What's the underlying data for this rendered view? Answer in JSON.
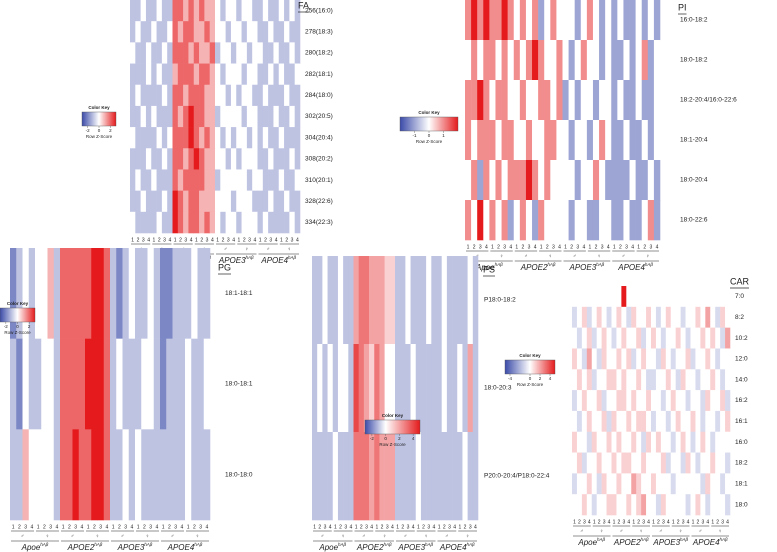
{
  "colors": [
    "#3b4ba8",
    "#ffffff",
    "#e41a1c"
  ],
  "groups": [
    {
      "name": "Apoe",
      "sup": "hAβ"
    },
    {
      "name": "APOE2",
      "sup": "hAβ"
    },
    {
      "name": "APOE3",
      "sup": "hAβ"
    },
    {
      "name": "APOE4",
      "sup": "hAβ"
    }
  ],
  "sexes": [
    "♂",
    "♀"
  ],
  "column_labels": [
    1,
    2,
    3,
    4
  ],
  "chart_data": [
    {
      "type": "heatmap",
      "title": "FA",
      "key_title": "Color Key",
      "key_label": "Row Z-Score",
      "zlim": [
        -3,
        3
      ],
      "zticks": [
        -2,
        0,
        2
      ],
      "rows": [
        "256(16:0)",
        "278(18:3)",
        "280(18:2)",
        "282(18:1)",
        "284(18:0)",
        "302(20:5)",
        "304(20:4)",
        "308(20:2)",
        "310(20:1)",
        "328(22:6)",
        "334(22:3)"
      ],
      "values": [
        [
          -1,
          -1,
          0,
          -1,
          -1,
          0,
          -1,
          -1,
          2,
          2,
          1,
          2,
          1,
          2,
          1,
          1,
          0,
          -1,
          0,
          0,
          -1,
          0,
          0,
          -1,
          -1,
          0,
          -1,
          -1,
          0,
          -1,
          0,
          -1
        ],
        [
          -1,
          0,
          -1,
          -1,
          0,
          -1,
          -1,
          0,
          2,
          1,
          2,
          2,
          1,
          1,
          2,
          1,
          0,
          0,
          -1,
          0,
          0,
          -1,
          0,
          0,
          -1,
          -1,
          0,
          -1,
          -1,
          0,
          -1,
          -1
        ],
        [
          0,
          -1,
          -1,
          0,
          -1,
          -1,
          0,
          -1,
          2,
          2,
          2,
          1,
          2,
          1,
          1,
          2,
          -1,
          0,
          0,
          -1,
          0,
          0,
          -1,
          0,
          0,
          -1,
          -1,
          0,
          -1,
          -1,
          0,
          -1
        ],
        [
          -1,
          -1,
          -1,
          0,
          -1,
          0,
          -1,
          -1,
          1,
          2,
          2,
          2,
          1,
          2,
          2,
          1,
          0,
          -1,
          0,
          0,
          0,
          -1,
          0,
          0,
          -1,
          -1,
          0,
          -1,
          0,
          -1,
          -1,
          0
        ],
        [
          -1,
          0,
          -1,
          -1,
          -1,
          -1,
          0,
          -1,
          2,
          2,
          1,
          2,
          2,
          2,
          1,
          1,
          0,
          0,
          -1,
          0,
          -1,
          0,
          0,
          -1,
          -1,
          0,
          -1,
          -1,
          -1,
          0,
          -1,
          -1
        ],
        [
          -1,
          -1,
          0,
          -1,
          0,
          -1,
          -1,
          -1,
          2,
          1,
          2,
          3,
          2,
          2,
          1,
          1,
          -1,
          0,
          0,
          0,
          0,
          -1,
          0,
          0,
          -1,
          -1,
          -1,
          0,
          -1,
          -1,
          0,
          -1
        ],
        [
          0,
          -1,
          -1,
          -1,
          -1,
          0,
          -1,
          0,
          2,
          2,
          2,
          3,
          2,
          1,
          2,
          1,
          0,
          -1,
          0,
          -1,
          0,
          0,
          -1,
          0,
          -1,
          0,
          -1,
          -1,
          0,
          -1,
          -1,
          -1
        ],
        [
          -1,
          -1,
          -1,
          0,
          -1,
          -1,
          0,
          -1,
          2,
          2,
          1,
          2,
          3,
          2,
          1,
          1,
          0,
          0,
          -1,
          0,
          -1,
          0,
          0,
          0,
          -1,
          -1,
          0,
          -1,
          -1,
          -1,
          0,
          -1
        ],
        [
          -1,
          0,
          -1,
          -1,
          0,
          -1,
          -1,
          -1,
          2,
          1,
          2,
          2,
          2,
          2,
          1,
          1,
          -1,
          0,
          0,
          0,
          0,
          0,
          -1,
          0,
          0,
          -1,
          -1,
          -1,
          0,
          -1,
          -1,
          0
        ],
        [
          -1,
          -1,
          0,
          -1,
          -1,
          -1,
          0,
          -1,
          3,
          2,
          1,
          2,
          2,
          1,
          1,
          1,
          0,
          0,
          0,
          -1,
          0,
          0,
          0,
          -1,
          -1,
          -1,
          0,
          -1,
          -1,
          0,
          -1,
          -1
        ],
        [
          0,
          -1,
          -1,
          -1,
          -1,
          0,
          -1,
          -1,
          3,
          2,
          1,
          2,
          2,
          1,
          2,
          1,
          0,
          -1,
          0,
          0,
          -1,
          0,
          0,
          0,
          -1,
          0,
          -1,
          -1,
          -1,
          -1,
          0,
          -1
        ]
      ]
    },
    {
      "type": "heatmap",
      "title": "PI",
      "key_title": "Color Key",
      "key_label": "Row Z-Score",
      "zlim": [
        -2,
        2
      ],
      "zticks": [
        -1,
        0,
        1
      ],
      "rows": [
        "16:0-18:2",
        "18:0-18:2",
        "18:2-20:4/16:0-22:6",
        "18:1-20:4",
        "18:0-20:4",
        "18:0-22:6"
      ],
      "values": [
        [
          1,
          2,
          1,
          2,
          1,
          1,
          2,
          1,
          0,
          1,
          0,
          1,
          -1,
          0,
          1,
          0,
          0,
          0,
          -1,
          0,
          1,
          0,
          -1,
          0,
          -1,
          0,
          -1,
          -1,
          0,
          -1,
          0,
          -1
        ],
        [
          0,
          1,
          0,
          1,
          1,
          0,
          1,
          0,
          1,
          0,
          1,
          2,
          1,
          0,
          0,
          1,
          0,
          -1,
          0,
          1,
          0,
          0,
          -1,
          0,
          -1,
          -1,
          0,
          -1,
          0,
          1,
          -1,
          0
        ],
        [
          1,
          1,
          2,
          1,
          0,
          1,
          1,
          0,
          0,
          1,
          0,
          0,
          1,
          1,
          0,
          1,
          -1,
          0,
          -1,
          0,
          0,
          -1,
          0,
          0,
          -1,
          0,
          -1,
          -1,
          0,
          -1,
          -1,
          0
        ],
        [
          1,
          0,
          1,
          1,
          1,
          0,
          1,
          1,
          0,
          0,
          1,
          0,
          0,
          1,
          1,
          0,
          0,
          -1,
          0,
          0,
          -1,
          0,
          1,
          0,
          -1,
          -1,
          0,
          -1,
          -1,
          0,
          -1,
          0
        ],
        [
          0,
          1,
          -1,
          1,
          0,
          1,
          0,
          1,
          1,
          1,
          2,
          1,
          0,
          1,
          0,
          0,
          0,
          0,
          -1,
          0,
          0,
          1,
          0,
          -1,
          -1,
          -1,
          -1,
          0,
          -1,
          -1,
          0,
          -1
        ],
        [
          1,
          0,
          2,
          0,
          1,
          0,
          1,
          -1,
          0,
          1,
          0,
          -1,
          1,
          0,
          0,
          0,
          0,
          -1,
          0,
          0,
          -1,
          -1,
          0,
          0,
          -1,
          -1,
          0,
          -1,
          -1,
          0,
          1,
          -1
        ]
      ]
    },
    {
      "type": "heatmap",
      "title": "PG",
      "key_title": "Color Key",
      "key_label": "Row Z-Score",
      "zlim": [
        -3,
        3
      ],
      "zticks": [
        -2,
        0,
        2
      ],
      "rows": [
        "18:1-18:1",
        "18:0-18:1",
        "18:0-18:0"
      ],
      "values": [
        [
          -2,
          -1,
          0,
          -1,
          0,
          0,
          1,
          -1,
          2,
          2,
          2,
          2,
          2,
          3,
          3,
          2,
          -1,
          -2,
          -1,
          0,
          -1,
          -1,
          0,
          -1,
          -2,
          -2,
          -1,
          -1,
          -1,
          0,
          -1,
          -1
        ],
        [
          -1,
          -2,
          0,
          -1,
          -1,
          0,
          0,
          -1,
          2,
          2,
          2,
          2,
          3,
          3,
          3,
          2,
          -1,
          0,
          -1,
          -1,
          -1,
          0,
          0,
          -1,
          -2,
          -1,
          -1,
          -1,
          0,
          -1,
          -1,
          0
        ],
        [
          -1,
          -1,
          1,
          0,
          0,
          0,
          0,
          -1,
          2,
          2,
          3,
          2,
          2,
          3,
          3,
          2,
          -1,
          -1,
          0,
          -1,
          0,
          -1,
          -1,
          -1,
          -1,
          -1,
          -1,
          -1,
          0,
          -1,
          -1,
          -1
        ]
      ]
    },
    {
      "type": "heatmap",
      "title": "PS",
      "key_title": "Color Key",
      "key_label": "Row Z-Score",
      "zlim": [
        -3,
        5
      ],
      "zticks": [
        -2,
        0,
        2,
        4
      ],
      "rows": [
        "P18:0-18:2",
        "18:0-20:3",
        "P20:0-20:4/P18:0-22:4"
      ],
      "values": [
        [
          -1,
          -1,
          0,
          -1,
          -1,
          0,
          -1,
          -1,
          2,
          3,
          3,
          2,
          2,
          2,
          1,
          1,
          -1,
          -1,
          0,
          -1,
          -1,
          -1,
          0,
          -1,
          -1,
          0,
          -1,
          -1,
          -1,
          -1,
          0,
          -1
        ],
        [
          -1,
          0,
          -1,
          0,
          -1,
          0,
          0,
          -1,
          4,
          3,
          2,
          1,
          3,
          2,
          0,
          0,
          -1,
          -1,
          -1,
          0,
          -1,
          -1,
          -1,
          -1,
          -1,
          0,
          -1,
          -1,
          0,
          -1,
          2,
          -1
        ],
        [
          -1,
          -1,
          -1,
          -1,
          0,
          -1,
          -1,
          -1,
          3,
          3,
          3,
          2,
          3,
          2,
          2,
          2,
          -1,
          -1,
          -1,
          -1,
          0,
          -1,
          -1,
          -1,
          -1,
          -1,
          -1,
          -1,
          -1,
          0,
          -1,
          -1
        ]
      ]
    },
    {
      "type": "heatmap",
      "title": "CAR",
      "key_title": "Color Key",
      "key_label": "Row Z-Score",
      "zlim": [
        -5,
        5
      ],
      "zticks": [
        -4,
        0,
        2,
        4
      ],
      "rows": [
        "7:0",
        "8:2",
        "10:2",
        "12:0",
        "14:0",
        "16:2",
        "16:1",
        "16:0",
        "18:2",
        "18:1",
        "18:0"
      ],
      "values": [
        [
          0,
          0,
          0,
          0,
          0,
          0,
          0,
          0,
          0,
          0,
          5,
          0,
          0,
          0,
          0,
          0,
          0,
          0,
          0,
          0,
          0,
          0,
          0,
          0,
          0,
          0,
          0,
          0,
          0,
          0,
          0,
          0
        ],
        [
          -1,
          0,
          1,
          -1,
          0,
          1,
          0,
          -1,
          0,
          1,
          0,
          -1,
          1,
          0,
          0,
          1,
          0,
          -1,
          0,
          1,
          0,
          0,
          -1,
          0,
          0,
          1,
          0,
          2,
          0,
          -1,
          1,
          0
        ],
        [
          0,
          -1,
          0,
          1,
          -1,
          0,
          1,
          0,
          -1,
          0,
          1,
          0,
          0,
          1,
          -1,
          0,
          1,
          0,
          -1,
          0,
          0,
          1,
          0,
          -1,
          0,
          0,
          1,
          0,
          1,
          0,
          -1,
          2
        ],
        [
          1,
          0,
          -1,
          2,
          0,
          -1,
          1,
          0,
          0,
          1,
          0,
          1,
          -1,
          0,
          1,
          0,
          0,
          -1,
          1,
          0,
          -1,
          0,
          0,
          1,
          -1,
          0,
          0,
          1,
          0,
          -1,
          0,
          0
        ],
        [
          0,
          1,
          0,
          1,
          -1,
          0,
          0,
          1,
          1,
          0,
          1,
          0,
          0,
          1,
          0,
          -1,
          -1,
          0,
          0,
          1,
          0,
          -1,
          1,
          0,
          0,
          -1,
          0,
          0,
          1,
          0,
          -1,
          0
        ],
        [
          -1,
          0,
          1,
          0,
          0,
          1,
          -1,
          0,
          0,
          1,
          1,
          0,
          1,
          0,
          0,
          1,
          0,
          0,
          -1,
          0,
          1,
          0,
          0,
          -1,
          0,
          0,
          -1,
          1,
          0,
          0,
          1,
          -1
        ],
        [
          0,
          -1,
          0,
          1,
          0,
          0,
          1,
          -1,
          1,
          0,
          0,
          1,
          0,
          1,
          1,
          0,
          -1,
          0,
          0,
          -1,
          0,
          1,
          0,
          0,
          1,
          0,
          -1,
          0,
          0,
          -1,
          0,
          1
        ],
        [
          1,
          0,
          0,
          -1,
          1,
          0,
          0,
          1,
          0,
          1,
          0,
          0,
          1,
          0,
          -1,
          1,
          0,
          1,
          0,
          0,
          -1,
          0,
          1,
          0,
          -1,
          0,
          1,
          0,
          -1,
          0,
          0,
          0
        ],
        [
          0,
          1,
          -1,
          0,
          0,
          1,
          0,
          0,
          1,
          0,
          1,
          1,
          0,
          0,
          1,
          0,
          0,
          0,
          1,
          -1,
          0,
          0,
          -1,
          1,
          0,
          -1,
          0,
          0,
          1,
          0,
          0,
          -1
        ],
        [
          -1,
          0,
          0,
          1,
          0,
          -1,
          1,
          0,
          0,
          1,
          0,
          0,
          2,
          1,
          0,
          0,
          1,
          0,
          0,
          0,
          -1,
          0,
          0,
          0,
          0,
          0,
          -1,
          1,
          0,
          0,
          -1,
          0
        ],
        [
          0,
          0,
          1,
          0,
          -1,
          0,
          0,
          1,
          1,
          0,
          0,
          1,
          0,
          1,
          2,
          0,
          0,
          -1,
          1,
          0,
          0,
          0,
          0,
          -1,
          0,
          1,
          0,
          -1,
          0,
          0,
          0,
          -1
        ]
      ]
    }
  ]
}
